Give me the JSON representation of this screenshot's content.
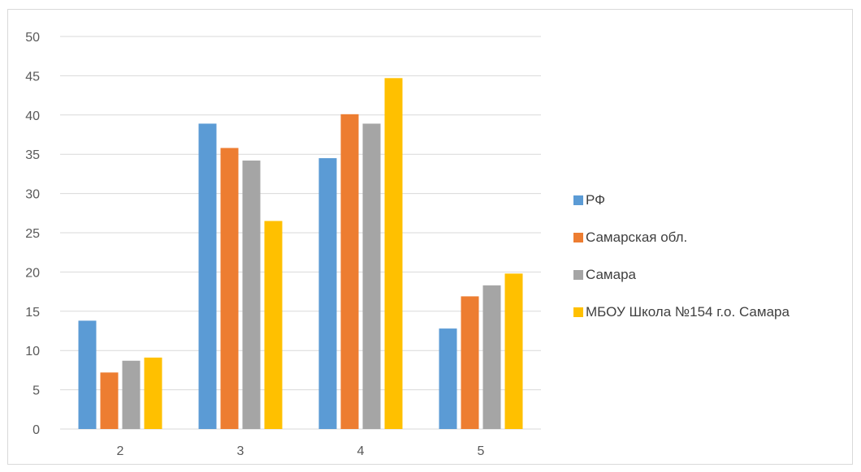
{
  "chart_data": {
    "type": "bar",
    "title": "",
    "xlabel": "",
    "ylabel": "",
    "categories": [
      "2",
      "3",
      "4",
      "5"
    ],
    "ylim": [
      0,
      50
    ],
    "yticks": [
      0,
      5,
      10,
      15,
      20,
      25,
      30,
      35,
      40,
      45,
      50
    ],
    "grid": true,
    "legend_position": "right",
    "series": [
      {
        "name": "РФ",
        "color": "#5b9bd5",
        "values": [
          13.8,
          38.9,
          34.5,
          12.8
        ]
      },
      {
        "name": "Самарская обл.",
        "color": "#ed7d31",
        "values": [
          7.2,
          35.8,
          40.1,
          16.9
        ]
      },
      {
        "name": "Самара",
        "color": "#a5a5a5",
        "values": [
          8.7,
          34.2,
          38.9,
          18.3
        ]
      },
      {
        "name": "МБОУ Школа №154 г.о. Самара",
        "color": "#ffc000",
        "values": [
          9.1,
          26.5,
          44.7,
          19.8
        ]
      }
    ]
  }
}
